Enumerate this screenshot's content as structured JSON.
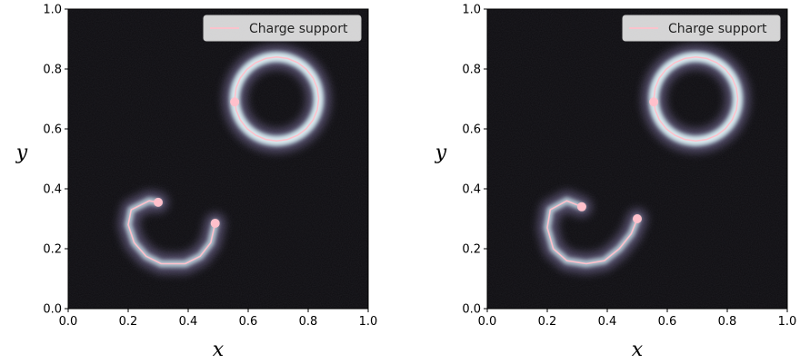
{
  "chart_data": [
    {
      "type": "line",
      "xlabel": "x",
      "ylabel": "y",
      "xlim": [
        0.0,
        1.0
      ],
      "ylim": [
        0.0,
        1.0
      ],
      "xticks": [
        "0.0",
        "0.2",
        "0.4",
        "0.6",
        "0.8",
        "1.0"
      ],
      "yticks": [
        "0.0",
        "0.2",
        "0.4",
        "0.6",
        "0.8",
        "1.0"
      ],
      "background": "#0d0c10",
      "legend": {
        "label": "Charge support",
        "placement": "top-right"
      },
      "colors": {
        "support_line": "#ffc0cb",
        "glow": "#cfeaf0"
      },
      "series": [
        {
          "shape": "open-arc",
          "x": [
            0.3,
            0.27,
            0.21,
            0.2,
            0.22,
            0.26,
            0.31,
            0.39,
            0.44,
            0.475,
            0.49
          ],
          "y": [
            0.355,
            0.36,
            0.33,
            0.28,
            0.22,
            0.175,
            0.15,
            0.15,
            0.175,
            0.22,
            0.285
          ],
          "endpoints": [
            [
              0.3,
              0.355
            ],
            [
              0.49,
              0.285
            ]
          ]
        },
        {
          "shape": "ring",
          "center": [
            0.695,
            0.7
          ],
          "radius": 0.14,
          "marker": [
            0.555,
            0.69
          ]
        }
      ]
    },
    {
      "type": "line",
      "xlabel": "x",
      "ylabel": "y",
      "xlim": [
        0.0,
        1.0
      ],
      "ylim": [
        0.0,
        1.0
      ],
      "xticks": [
        "0.0",
        "0.2",
        "0.4",
        "0.6",
        "0.8",
        "1.0"
      ],
      "yticks": [
        "0.0",
        "0.2",
        "0.4",
        "0.6",
        "0.8",
        "1.0"
      ],
      "background": "#0d0c10",
      "legend": {
        "label": "Charge support",
        "placement": "top-right"
      },
      "colors": {
        "support_line": "#ffc0cb",
        "glow": "#cfeaf0"
      },
      "series": [
        {
          "shape": "open-arc",
          "x": [
            0.315,
            0.265,
            0.21,
            0.2,
            0.22,
            0.265,
            0.33,
            0.39,
            0.44,
            0.48,
            0.5
          ],
          "y": [
            0.34,
            0.36,
            0.33,
            0.27,
            0.2,
            0.16,
            0.15,
            0.16,
            0.2,
            0.25,
            0.3
          ],
          "endpoints": [
            [
              0.315,
              0.34
            ],
            [
              0.5,
              0.3
            ]
          ]
        },
        {
          "shape": "ring",
          "center": [
            0.695,
            0.7
          ],
          "radius": 0.14,
          "marker": [
            0.555,
            0.69
          ]
        }
      ]
    }
  ]
}
